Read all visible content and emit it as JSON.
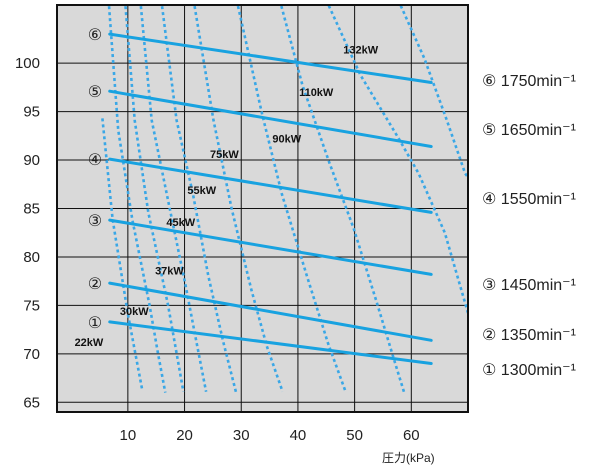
{
  "chart_data": {
    "type": "line",
    "title": "",
    "xlabel": "圧力(kPa)",
    "ylabel": "",
    "xlim": [
      -2.5,
      70
    ],
    "ylim": [
      64,
      106
    ],
    "x_ticks": [
      10,
      20,
      30,
      40,
      50,
      60
    ],
    "y_ticks": [
      65,
      70,
      75,
      80,
      85,
      90,
      95,
      100
    ],
    "x_tick_labels": [
      "10",
      "20",
      "30",
      "40",
      "50",
      "60"
    ],
    "y_tick_labels": [
      "65",
      "70",
      "75",
      "80",
      "85",
      "90",
      "95",
      "100"
    ],
    "grid": true,
    "colors": {
      "plot_bg": "#d9d9d9",
      "grid": "#111111",
      "series": "#18a2e0",
      "curve": "#3aa7e6"
    },
    "series": [
      {
        "marker": "①",
        "legend": "① 1300min⁻¹",
        "points": [
          [
            6.8,
            73.3
          ],
          [
            63.5,
            69.0
          ]
        ]
      },
      {
        "marker": "②",
        "legend": "② 1350min⁻¹",
        "points": [
          [
            6.8,
            77.3
          ],
          [
            63.5,
            71.4
          ]
        ]
      },
      {
        "marker": "③",
        "legend": "③ 1450min⁻¹",
        "points": [
          [
            6.8,
            83.8
          ],
          [
            63.5,
            78.2
          ]
        ]
      },
      {
        "marker": "④",
        "legend": "④ 1550min⁻¹",
        "points": [
          [
            6.8,
            90.1
          ],
          [
            63.5,
            84.6
          ]
        ]
      },
      {
        "marker": "⑤",
        "legend": "⑤ 1650min⁻¹",
        "points": [
          [
            6.8,
            97.1
          ],
          [
            63.5,
            91.4
          ]
        ]
      },
      {
        "marker": "⑥",
        "legend": "⑥ 1750min⁻¹",
        "points": [
          [
            6.8,
            103.0
          ],
          [
            63.5,
            98.0
          ]
        ]
      }
    ],
    "power_curves": [
      {
        "label": "22kW",
        "points": [
          [
            5.5,
            94.3
          ],
          [
            7.3,
            83.9
          ],
          [
            10.0,
            74.1
          ],
          [
            12.5,
            66.4
          ]
        ]
      },
      {
        "label": "30kW",
        "points": [
          [
            6.6,
            106.5
          ],
          [
            8.3,
            93.1
          ],
          [
            10.8,
            83.8
          ],
          [
            13.8,
            75.1
          ],
          [
            15.3,
            70.1
          ],
          [
            16.6,
            66.0
          ]
        ]
      },
      {
        "label": "37kW",
        "points": [
          [
            9.5,
            106.5
          ],
          [
            11.2,
            94.1
          ],
          [
            13.6,
            84.6
          ],
          [
            17.1,
            75.0
          ],
          [
            19.8,
            66.1
          ]
        ]
      },
      {
        "label": "45kW",
        "points": [
          [
            12.2,
            106.5
          ],
          [
            14.2,
            94.1
          ],
          [
            17.8,
            83.8
          ],
          [
            20.2,
            77.0
          ],
          [
            21.8,
            72.1
          ],
          [
            23.8,
            66.1
          ]
        ]
      },
      {
        "label": "55kW",
        "points": [
          [
            15.9,
            106.5
          ],
          [
            18.6,
            94.1
          ],
          [
            21.5,
            86.4
          ],
          [
            24.2,
            78.0
          ],
          [
            26.8,
            71.3
          ],
          [
            29.1,
            66.0
          ]
        ]
      },
      {
        "label": "75kW",
        "points": [
          [
            21.6,
            106.5
          ],
          [
            25.1,
            94.1
          ],
          [
            28.3,
            85.0
          ],
          [
            31.8,
            76.6
          ],
          [
            34.5,
            70.8
          ],
          [
            37.3,
            66.1
          ]
        ]
      },
      {
        "label": "90kW",
        "points": [
          [
            29.2,
            106.5
          ],
          [
            33.7,
            94.7
          ],
          [
            37.2,
            86.4
          ],
          [
            41.6,
            78.0
          ],
          [
            45.3,
            71.1
          ],
          [
            48.4,
            66.1
          ]
        ]
      },
      {
        "label": "110kW",
        "points": [
          [
            36.8,
            106.5
          ],
          [
            40.8,
            97.7
          ],
          [
            45.5,
            89.8
          ],
          [
            49.8,
            83.0
          ],
          [
            53.8,
            75.5
          ],
          [
            56.6,
            70.1
          ],
          [
            58.7,
            66.1
          ]
        ]
      },
      {
        "label": "132kW",
        "points": [
          [
            45.0,
            106.5
          ],
          [
            51.0,
            98.8
          ],
          [
            57.8,
            92.2
          ],
          [
            61.3,
            88.6
          ],
          [
            65.9,
            82.5
          ],
          [
            70.4,
            73.4
          ],
          [
            72.6,
            68.8
          ]
        ]
      },
      {
        "label": "",
        "points": [
          [
            57.7,
            106.5
          ],
          [
            62.3,
            100.5
          ],
          [
            66.2,
            94.2
          ],
          [
            69.5,
            88.6
          ],
          [
            74.5,
            84.8
          ]
        ]
      }
    ],
    "power_labels": [
      {
        "label": "22kW",
        "x": 0.6,
        "y": 70.8
      },
      {
        "label": "30kW",
        "x": 8.6,
        "y": 74.0
      },
      {
        "label": "37kW",
        "x": 14.8,
        "y": 78.2
      },
      {
        "label": "45kW",
        "x": 16.8,
        "y": 83.2
      },
      {
        "label": "55kW",
        "x": 20.5,
        "y": 86.5
      },
      {
        "label": "75kW",
        "x": 24.5,
        "y": 90.2
      },
      {
        "label": "90kW",
        "x": 35.5,
        "y": 91.8
      },
      {
        "label": "110kW",
        "x": 40.2,
        "y": 96.6
      },
      {
        "label": "132kW",
        "x": 48.0,
        "y": 101.0
      }
    ]
  }
}
